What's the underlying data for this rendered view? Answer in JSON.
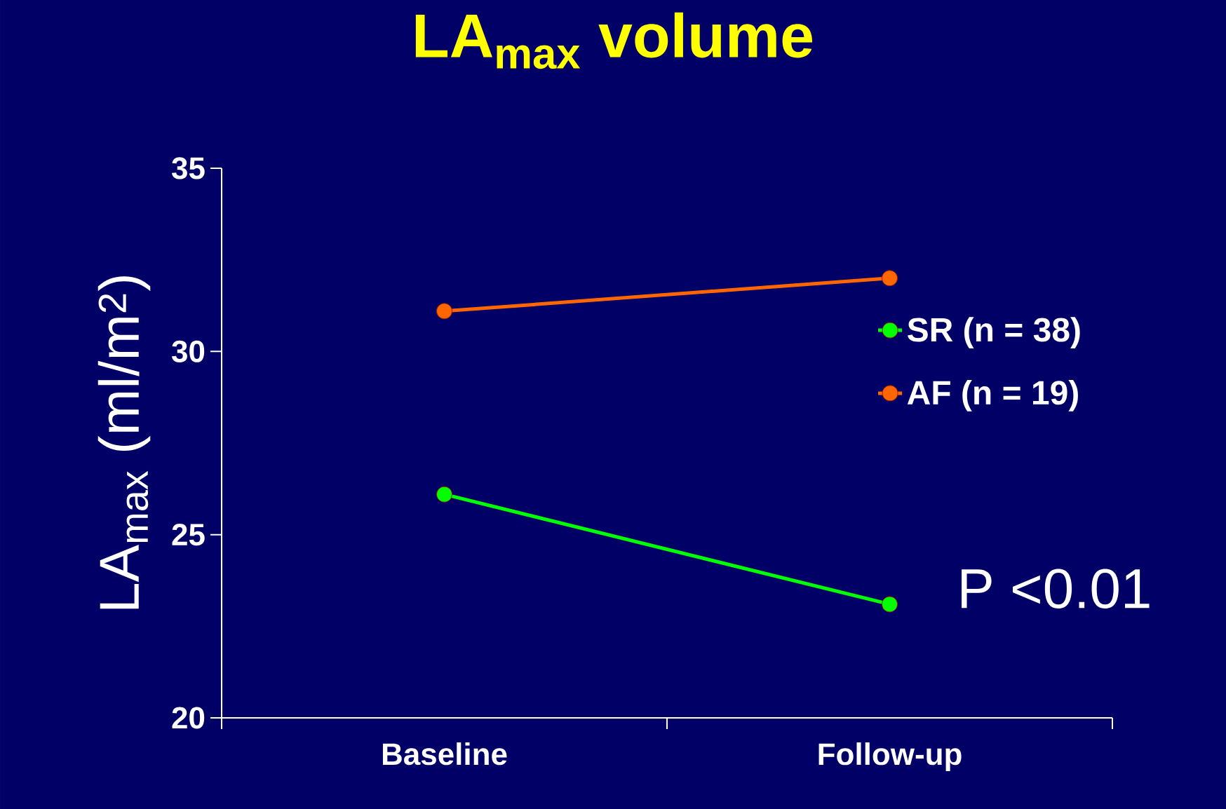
{
  "chart_data": {
    "type": "line",
    "title": "LA$_{max}$ volume",
    "ylabel": "LA$_{max}$ (ml/m$^{2}$)",
    "categories": [
      "Baseline",
      "Follow-up"
    ],
    "series": [
      {
        "name": "SR (n = 38)",
        "color": "#00ff00",
        "values": [
          26.1,
          23.1
        ]
      },
      {
        "name": "AF (n = 19)",
        "color": "#ff6600",
        "values": [
          31.1,
          32.0
        ]
      }
    ],
    "ylim": [
      20,
      35
    ],
    "yticks": [
      20,
      25,
      30,
      35
    ],
    "marker": "circle",
    "line_style": "solid",
    "legend": "right",
    "grid": false,
    "annotations": [
      "P <0.01"
    ]
  }
}
